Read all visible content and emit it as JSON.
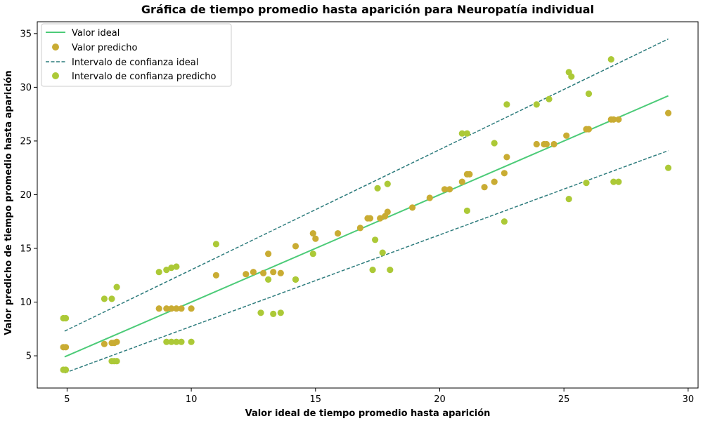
{
  "chart_data": {
    "type": "scatter",
    "title": "Gráfica de tiempo promedio hasta aparición para Neuropatía individual",
    "xlabel": "Valor ideal de tiempo promedio hasta aparición",
    "ylabel": "Valor predicho de tiempo promedio hasta aparición",
    "xlim": [
      3.8,
      30.4
    ],
    "ylim": [
      2.0,
      36.1
    ],
    "xticks": [
      5,
      10,
      15,
      20,
      25,
      30
    ],
    "yticks": [
      5,
      10,
      15,
      20,
      25,
      30,
      35
    ],
    "grid": false,
    "legend_position": "top-left",
    "legend": [
      {
        "label": "Valor ideal",
        "kind": "line",
        "color": "#4ccb78"
      },
      {
        "label": "Valor predicho",
        "kind": "marker",
        "color": "#c9ac33"
      },
      {
        "label": "Intervalo de confianza ideal",
        "kind": "dashed",
        "color": "#2c7b7c"
      },
      {
        "label": "Intervalo de confianza predicho",
        "kind": "marker",
        "color": "#acc937"
      }
    ],
    "series": [
      {
        "name": "Valor ideal",
        "color": "#4ccb78",
        "style": "line",
        "x": [
          4.9,
          29.2
        ],
        "y": [
          4.9,
          29.2
        ]
      },
      {
        "name": "Valor predicho",
        "color": "#c9ac33",
        "style": "scatter",
        "x": [
          4.85,
          4.95,
          6.5,
          6.8,
          6.9,
          7.0,
          8.7,
          9.0,
          9.2,
          9.4,
          9.6,
          10.0,
          11.0,
          12.2,
          12.5,
          12.9,
          13.1,
          13.3,
          13.6,
          14.2,
          14.9,
          15.0,
          15.9,
          16.8,
          17.1,
          17.2,
          17.6,
          17.8,
          17.9,
          18.9,
          19.6,
          20.2,
          20.4,
          20.9,
          21.1,
          21.2,
          21.8,
          22.2,
          22.6,
          22.7,
          23.9,
          24.2,
          24.3,
          24.6,
          25.1,
          25.9,
          26.0,
          26.9,
          27.0,
          27.2,
          29.2
        ],
        "y": [
          5.8,
          5.8,
          6.1,
          6.2,
          6.2,
          6.3,
          9.4,
          9.4,
          9.4,
          9.4,
          9.4,
          9.4,
          12.5,
          12.6,
          12.8,
          12.7,
          14.5,
          12.8,
          12.7,
          15.2,
          16.4,
          15.9,
          16.4,
          16.9,
          17.8,
          17.8,
          17.8,
          18.0,
          18.4,
          18.8,
          19.7,
          20.5,
          20.5,
          21.2,
          21.9,
          21.9,
          20.7,
          21.2,
          22.0,
          23.5,
          24.7,
          24.7,
          24.7,
          24.7,
          25.5,
          26.1,
          26.1,
          27.0,
          27.0,
          27.0,
          27.6
        ]
      },
      {
        "name": "Intervalo de confianza predicho",
        "color": "#acc937",
        "style": "scatter",
        "x": [
          4.85,
          4.95,
          4.85,
          4.95,
          6.5,
          6.8,
          7.0,
          6.8,
          6.9,
          7.0,
          8.7,
          9.0,
          9.2,
          9.4,
          9.0,
          9.2,
          9.4,
          9.6,
          10.0,
          11.0,
          13.1,
          12.8,
          13.3,
          13.6,
          14.2,
          14.2,
          14.9,
          17.5,
          17.4,
          17.3,
          17.9,
          17.7,
          18.0,
          20.9,
          21.1,
          21.1,
          22.2,
          22.6,
          22.7,
          23.9,
          24.4,
          25.2,
          25.3,
          25.2,
          26.0,
          25.9,
          26.9,
          27.0,
          27.2,
          29.2
        ],
        "y": [
          8.5,
          8.5,
          3.7,
          3.7,
          10.3,
          10.3,
          11.4,
          4.5,
          4.5,
          4.5,
          12.8,
          13.0,
          13.2,
          13.3,
          6.3,
          6.3,
          6.3,
          6.3,
          6.3,
          15.4,
          12.1,
          9.0,
          8.9,
          9.0,
          12.1,
          12.1,
          14.5,
          20.6,
          15.8,
          13.0,
          21.0,
          14.6,
          13.0,
          25.7,
          25.7,
          18.5,
          24.8,
          17.5,
          28.4,
          28.4,
          28.9,
          31.4,
          31.0,
          19.6,
          29.4,
          21.1,
          32.6,
          21.2,
          21.2,
          22.5
        ]
      },
      {
        "name": "Intervalo de confianza ideal",
        "color": "#2c7b7c",
        "style": "dashed",
        "bands": [
          {
            "x": [
              4.9,
              29.2
            ],
            "y": [
              7.3,
              34.5
            ]
          },
          {
            "x": [
              4.9,
              29.2
            ],
            "y": [
              3.4,
              24.1
            ]
          }
        ]
      }
    ]
  }
}
